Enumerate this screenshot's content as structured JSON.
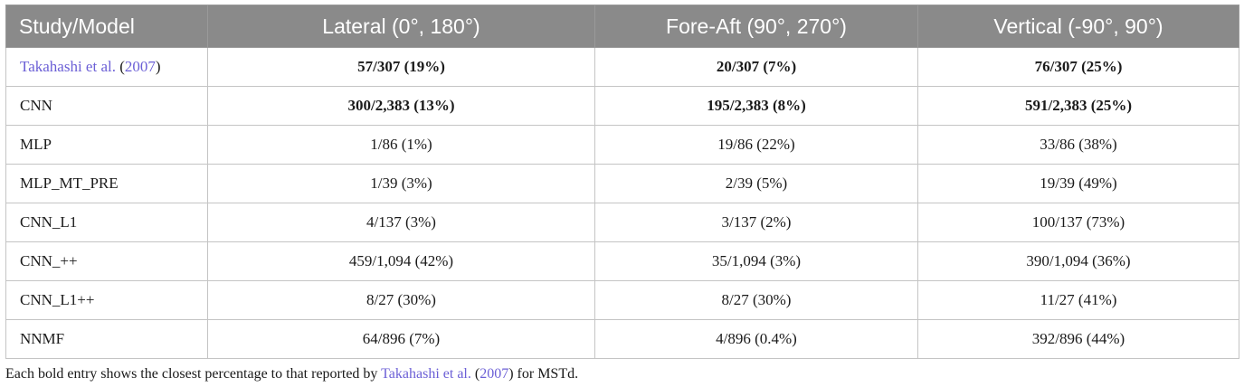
{
  "table": {
    "headers": [
      "Study/Model",
      "Lateral (0°, 180°)",
      "Fore-Aft (90°, 270°)",
      "Vertical (-90°, 90°)"
    ],
    "rows": [
      {
        "model": {
          "author": "Takahashi et al.",
          "open": " (",
          "year": "2007",
          "close": ")"
        },
        "lateral": "57/307 (19%)",
        "fore_aft": "20/307 (7%)",
        "vertical": "76/307 (25%)",
        "bold": true
      },
      {
        "model": "CNN",
        "lateral": "300/2,383 (13%)",
        "fore_aft": "195/2,383 (8%)",
        "vertical": "591/2,383 (25%)",
        "bold": true
      },
      {
        "model": "MLP",
        "lateral": "1/86 (1%)",
        "fore_aft": "19/86 (22%)",
        "vertical": "33/86 (38%)",
        "bold": false
      },
      {
        "model": "MLP_MT_PRE",
        "lateral": "1/39 (3%)",
        "fore_aft": "2/39 (5%)",
        "vertical": "19/39 (49%)",
        "bold": false
      },
      {
        "model": "CNN_L1",
        "lateral": "4/137 (3%)",
        "fore_aft": "3/137 (2%)",
        "vertical": "100/137 (73%)",
        "bold": false
      },
      {
        "model": "CNN_++",
        "lateral": "459/1,094 (42%)",
        "fore_aft": "35/1,094 (3%)",
        "vertical": "390/1,094 (36%)",
        "bold": false
      },
      {
        "model": "CNN_L1++",
        "lateral": "8/27 (30%)",
        "fore_aft": "8/27 (30%)",
        "vertical": "11/27 (41%)",
        "bold": false
      },
      {
        "model": "NNMF",
        "lateral": "64/896 (7%)",
        "fore_aft": "4/896 (0.4%)",
        "vertical": "392/896 (44%)",
        "bold": false
      }
    ]
  },
  "footnote": {
    "before": "Each bold entry shows the closest percentage to that reported by ",
    "author": "Takahashi et al.",
    "open": " (",
    "year": "2007",
    "after": ") for MSTd."
  },
  "colors": {
    "header_bg": "#8a8a8a",
    "header_text": "#ffffff",
    "link": "#6b5fd6",
    "border": "#c4c4c4"
  }
}
